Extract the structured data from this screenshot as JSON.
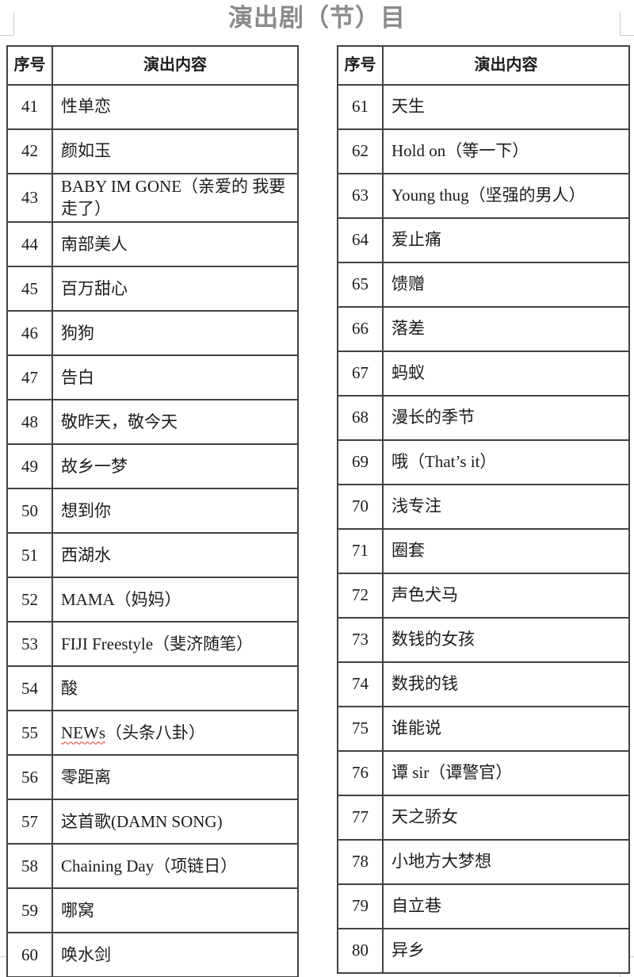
{
  "title": "演出剧（节）目",
  "colors": {
    "title": "#8a8a8a",
    "table_border": "#424242",
    "body_text": "#1c1c1c",
    "corner_mark": "#c9c9c9",
    "spellcheck_underline": "#e03a2f"
  },
  "tables": [
    {
      "name": "left",
      "headers": {
        "no": "序号",
        "content": "演出内容"
      },
      "rows": [
        {
          "n": "41",
          "t": "性单恋"
        },
        {
          "n": "42",
          "t": "颜如玉"
        },
        {
          "n": "43",
          "t": "BABY IM GONE（亲爱的 我要走了）"
        },
        {
          "n": "44",
          "t": "南部美人"
        },
        {
          "n": "45",
          "t": "百万甜心"
        },
        {
          "n": "46",
          "t": "狗狗"
        },
        {
          "n": "47",
          "t": "告白"
        },
        {
          "n": "48",
          "t": "敬昨天，敬今天"
        },
        {
          "n": "49",
          "t": "故乡一梦"
        },
        {
          "n": "50",
          "t": "想到你"
        },
        {
          "n": "51",
          "t": "西湖水"
        },
        {
          "n": "52",
          "t": "MAMA（妈妈）"
        },
        {
          "n": "53",
          "t": "FIJI Freestyle（斐济随笔）"
        },
        {
          "n": "54",
          "t": "酸"
        },
        {
          "n": "55",
          "t": "NEWs（头条八卦）",
          "wavy": "NEWs"
        },
        {
          "n": "56",
          "t": "零距离"
        },
        {
          "n": "57",
          "t": "这首歌(DAMN SONG)"
        },
        {
          "n": "58",
          "t": "Chaining Day（项链日）"
        },
        {
          "n": "59",
          "t": "哪窝"
        },
        {
          "n": "60",
          "t": "唤水剑"
        }
      ]
    },
    {
      "name": "right",
      "headers": {
        "no": "序号",
        "content": "演出内容"
      },
      "rows": [
        {
          "n": "61",
          "t": "天生"
        },
        {
          "n": "62",
          "t": "Hold on（等一下）"
        },
        {
          "n": "63",
          "t": "Young thug（坚强的男人）"
        },
        {
          "n": "64",
          "t": "爱止痛"
        },
        {
          "n": "65",
          "t": "馈赠"
        },
        {
          "n": "66",
          "t": "落差"
        },
        {
          "n": "67",
          "t": "蚂蚁"
        },
        {
          "n": "68",
          "t": "漫长的季节"
        },
        {
          "n": "69",
          "t": "哦（That’s it）"
        },
        {
          "n": "70",
          "t": "浅专注"
        },
        {
          "n": "71",
          "t": "圈套"
        },
        {
          "n": "72",
          "t": "声色犬马"
        },
        {
          "n": "73",
          "t": "数钱的女孩"
        },
        {
          "n": "74",
          "t": "数我的钱"
        },
        {
          "n": "75",
          "t": "谁能说"
        },
        {
          "n": "76",
          "t": "谭 sir（谭警官）"
        },
        {
          "n": "77",
          "t": "天之骄女"
        },
        {
          "n": "78",
          "t": "小地方大梦想"
        },
        {
          "n": "79",
          "t": "自立巷"
        },
        {
          "n": "80",
          "t": "异乡"
        }
      ]
    }
  ]
}
